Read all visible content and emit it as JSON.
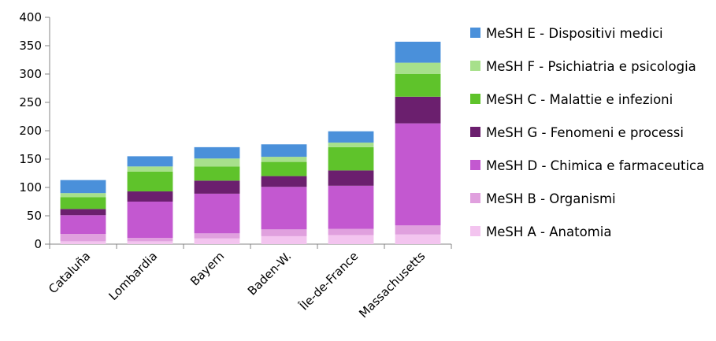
{
  "chart_data": {
    "type": "bar",
    "stacked": true,
    "title": "",
    "xlabel": "",
    "ylabel": "",
    "ylim": [
      0,
      400
    ],
    "yticks": [
      "0",
      "50",
      "100",
      "150",
      "200",
      "250",
      "300",
      "350",
      "400"
    ],
    "grid": false,
    "legend_position": "right",
    "categories": [
      "Cataluña",
      "Lombardia",
      "Bayern",
      "Baden-W.",
      "Île-de-France",
      "Massachusetts"
    ],
    "series": [
      {
        "name": "MeSH A - Anatomia",
        "color": "#f3c4ef",
        "values": [
          5,
          5,
          10,
          14,
          16,
          17
        ]
      },
      {
        "name": "MeSH B - Organismi",
        "color": "#e0a0de",
        "values": [
          13,
          6,
          9,
          12,
          11,
          16
        ]
      },
      {
        "name": "MeSH D - Chimica e farmaceutica",
        "color": "#c358d0",
        "values": [
          33,
          64,
          70,
          75,
          76,
          180
        ]
      },
      {
        "name": "MeSH G - Fenomeni e processi",
        "color": "#6b1f6e",
        "values": [
          11,
          18,
          23,
          19,
          27,
          47
        ]
      },
      {
        "name": "MeSH C - Malattie e infezioni",
        "color": "#5fc32b",
        "values": [
          21,
          35,
          25,
          25,
          41,
          40
        ]
      },
      {
        "name": "MeSH F - Psichiatria e psicologia",
        "color": "#a7e08b",
        "values": [
          7,
          9,
          14,
          9,
          8,
          20
        ]
      },
      {
        "name": "MeSH E - Dispositivi medici",
        "color": "#4a90da",
        "values": [
          23,
          18,
          20,
          22,
          20,
          37
        ]
      }
    ]
  }
}
